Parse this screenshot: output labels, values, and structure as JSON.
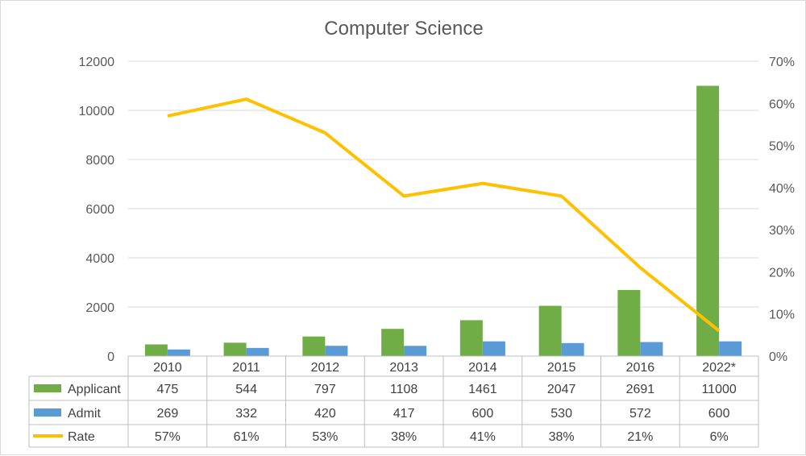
{
  "chart_data": {
    "type": "bar",
    "title": "Computer Science",
    "categories": [
      "2010",
      "2011",
      "2012",
      "2013",
      "2014",
      "2015",
      "2016",
      "2022*"
    ],
    "series": [
      {
        "name": "Applicant",
        "kind": "bar",
        "axis": "left",
        "color": "#70ad47",
        "values": [
          475,
          544,
          797,
          1108,
          1461,
          2047,
          2691,
          11000
        ],
        "labels": [
          "475",
          "544",
          "797",
          "1108",
          "1461",
          "2047",
          "2691",
          "11000"
        ]
      },
      {
        "name": "Admit",
        "kind": "bar",
        "axis": "left",
        "color": "#5b9bd5",
        "values": [
          269,
          332,
          420,
          417,
          600,
          530,
          572,
          600
        ],
        "labels": [
          "269",
          "332",
          "420",
          "417",
          "600",
          "530",
          "572",
          "600"
        ]
      },
      {
        "name": "Rate",
        "kind": "line",
        "axis": "right",
        "color": "#ffc000",
        "values": [
          57,
          61,
          53,
          38,
          41,
          38,
          21,
          6
        ],
        "labels": [
          "57%",
          "61%",
          "53%",
          "38%",
          "41%",
          "38%",
          "21%",
          "6%"
        ]
      }
    ],
    "y_left": {
      "min": 0,
      "max": 12000,
      "ticks": [
        "0",
        "2000",
        "4000",
        "6000",
        "8000",
        "10000",
        "12000"
      ]
    },
    "y_right": {
      "min": 0,
      "max": 70,
      "ticks": [
        "0%",
        "10%",
        "20%",
        "30%",
        "40%",
        "50%",
        "60%",
        "70%"
      ]
    },
    "grid": true,
    "legend": "data-table-below"
  }
}
